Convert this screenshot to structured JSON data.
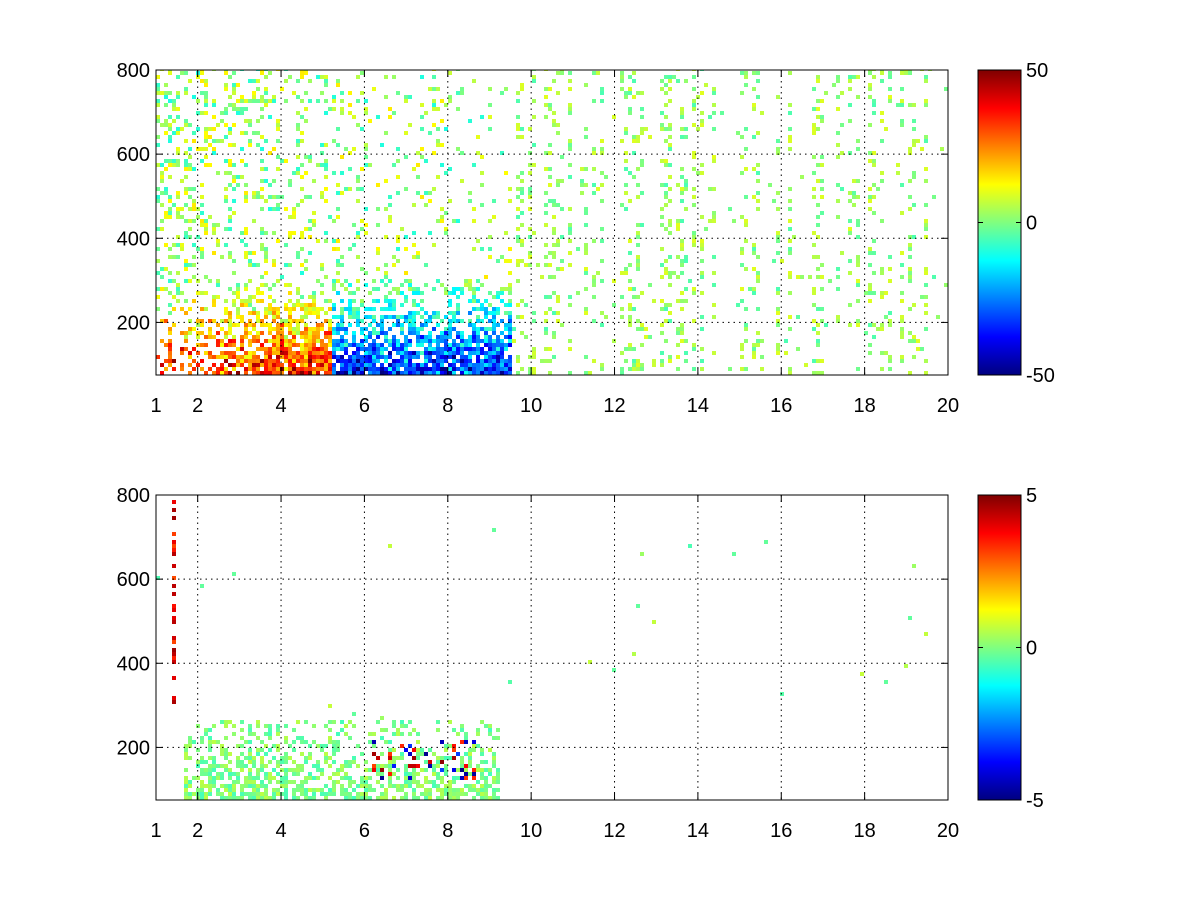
{
  "chart_data": [
    {
      "type": "heatmap",
      "title": "",
      "xlabel": "",
      "ylabel": "",
      "xlim": [
        1,
        20
      ],
      "ylim": [
        75,
        800
      ],
      "xticks": [
        1,
        2,
        4,
        6,
        8,
        10,
        12,
        14,
        16,
        18,
        20
      ],
      "xtick_labels": [
        "1",
        "2",
        "4",
        "6",
        "8",
        "10",
        "12",
        "14",
        "16",
        "18",
        "20"
      ],
      "yticks": [
        200,
        400,
        600,
        800
      ],
      "ytick_labels": [
        "200",
        "400",
        "600",
        "800"
      ],
      "grid": true,
      "colormap": "jet",
      "colorbar": {
        "range": [
          -50,
          50
        ],
        "ticks": [
          -50,
          0,
          50
        ],
        "tick_labels": [
          "-50",
          "0",
          "50"
        ]
      },
      "regions": [
        {
          "x": [
            1.0,
            9.5
          ],
          "y": [
            75,
            300
          ],
          "value_range": [
            -50,
            50
          ],
          "note": "dense high-magnitude band, strongest near y 100-160"
        },
        {
          "x": [
            1.0,
            9.5
          ],
          "y": [
            300,
            800
          ],
          "value_range": [
            -10,
            15
          ],
          "note": "dense vertical streaks"
        },
        {
          "x": [
            9.5,
            20.0
          ],
          "y": [
            75,
            800
          ],
          "value_range": [
            -5,
            10
          ],
          "note": "sparse scattered cells"
        }
      ]
    },
    {
      "type": "heatmap",
      "title": "",
      "xlabel": "",
      "ylabel": "",
      "xlim": [
        1,
        20
      ],
      "ylim": [
        75,
        800
      ],
      "xticks": [
        1,
        2,
        4,
        6,
        8,
        10,
        12,
        14,
        16,
        18,
        20
      ],
      "xtick_labels": [
        "1",
        "2",
        "4",
        "6",
        "8",
        "10",
        "12",
        "14",
        "16",
        "18",
        "20"
      ],
      "yticks": [
        200,
        400,
        600,
        800
      ],
      "ytick_labels": [
        "200",
        "400",
        "600",
        "800"
      ],
      "grid": true,
      "colormap": "jet",
      "colorbar": {
        "range": [
          -5,
          5
        ],
        "ticks": [
          -5,
          0,
          5
        ],
        "tick_labels": [
          "-5",
          "0",
          "5"
        ]
      },
      "regions": [
        {
          "x": [
            1.7,
            9.3
          ],
          "y": [
            75,
            260
          ],
          "value_range": [
            -4,
            5
          ],
          "note": "sparse band, mostly near 0 with hot spots near x 6.3-8.6"
        },
        {
          "x": [
            1.3,
            1.5
          ],
          "y": [
            270,
            790
          ],
          "value_range": [
            -2,
            5
          ],
          "note": "thin vertical streak"
        }
      ]
    }
  ]
}
